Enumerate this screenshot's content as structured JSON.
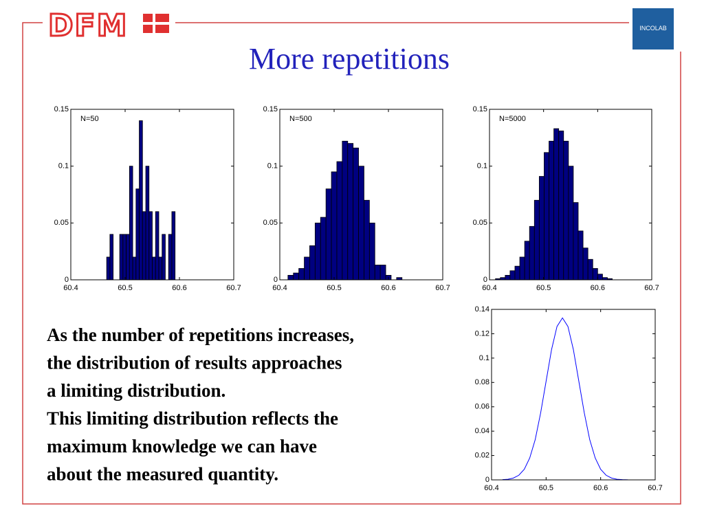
{
  "logo": "DFM",
  "badge": "INCOLAB",
  "title": "More repetitions",
  "body": [
    "As the number of repetitions increases,",
    "the distribution of results approaches",
    "a limiting distribution.",
    "This limiting distribution reflects the",
    "maximum knowledge we can have",
    "about the measured quantity."
  ],
  "chart_data": [
    {
      "type": "histogram",
      "annotation": "N=50",
      "color": "#000080",
      "bins": [
        60.466,
        60.472,
        60.478,
        60.484,
        60.49,
        60.496,
        60.502,
        60.508,
        60.514,
        60.52,
        60.526,
        60.532,
        60.538,
        60.544,
        60.55,
        60.556,
        60.562,
        60.568,
        60.574,
        60.58,
        60.586,
        60.592
      ],
      "values": [
        0.02,
        0.04,
        0,
        0,
        0.04,
        0.04,
        0.04,
        0.1,
        0.02,
        0.08,
        0.14,
        0.06,
        0.1,
        0.06,
        0.02,
        0.06,
        0.02,
        0.04,
        0,
        0.04,
        0.06
      ],
      "xlim": [
        60.4,
        60.7
      ],
      "xticks": [
        60.4,
        60.5,
        60.6,
        60.7
      ],
      "ylim": [
        0,
        0.15
      ],
      "yticks": [
        0,
        0.05,
        0.1,
        0.15
      ]
    },
    {
      "type": "histogram",
      "annotation": "N=500",
      "color": "#000080",
      "bins": [
        60.415,
        60.425,
        60.435,
        60.445,
        60.455,
        60.465,
        60.475,
        60.485,
        60.495,
        60.505,
        60.515,
        60.525,
        60.535,
        60.545,
        60.555,
        60.565,
        60.575,
        60.585,
        60.595,
        60.605,
        60.615,
        60.625
      ],
      "values": [
        0.004,
        0.006,
        0.01,
        0.02,
        0.03,
        0.05,
        0.055,
        0.08,
        0.095,
        0.104,
        0.122,
        0.12,
        0.116,
        0.1,
        0.07,
        0.05,
        0.013,
        0.013,
        0.004,
        0,
        0.002
      ],
      "xlim": [
        60.4,
        60.7
      ],
      "xticks": [
        60.4,
        60.5,
        60.6,
        60.7
      ],
      "ylim": [
        0,
        0.15
      ],
      "yticks": [
        0,
        0.05,
        0.1,
        0.15
      ]
    },
    {
      "type": "histogram",
      "annotation": "N=5000",
      "color": "#000080",
      "bins": [
        60.411,
        60.42,
        60.429,
        60.438,
        60.447,
        60.456,
        60.465,
        60.474,
        60.483,
        60.492,
        60.501,
        60.51,
        60.519,
        60.528,
        60.537,
        60.546,
        60.555,
        60.564,
        60.573,
        60.582,
        60.591,
        60.6,
        60.609,
        60.618,
        60.627
      ],
      "values": [
        0.001,
        0.002,
        0.004,
        0.008,
        0.012,
        0.02,
        0.034,
        0.047,
        0.07,
        0.091,
        0.112,
        0.122,
        0.133,
        0.131,
        0.122,
        0.1,
        0.068,
        0.043,
        0.028,
        0.018,
        0.01,
        0.005,
        0.002,
        0.001
      ],
      "xlim": [
        60.4,
        60.7
      ],
      "xticks": [
        60.4,
        60.5,
        60.6,
        60.7
      ],
      "ylim": [
        0,
        0.15
      ],
      "yticks": [
        0,
        0.05,
        0.1,
        0.15
      ]
    },
    {
      "type": "line",
      "color": "#0000ff",
      "x": [
        60.42,
        60.43,
        60.44,
        60.45,
        60.46,
        60.47,
        60.48,
        60.49,
        60.5,
        60.51,
        60.52,
        60.53,
        60.54,
        60.55,
        60.56,
        60.57,
        60.58,
        60.59,
        60.6,
        60.61,
        60.62,
        60.63,
        60.64,
        60.65,
        60.66
      ],
      "values": [
        0.0002,
        0.0005,
        0.0015,
        0.0038,
        0.0087,
        0.018,
        0.033,
        0.055,
        0.081,
        0.107,
        0.126,
        0.133,
        0.126,
        0.107,
        0.081,
        0.055,
        0.033,
        0.018,
        0.0087,
        0.0038,
        0.0015,
        0.0005,
        0.0002,
        5e-05,
        1e-05
      ],
      "xlim": [
        60.4,
        60.7
      ],
      "xticks": [
        60.4,
        60.5,
        60.6,
        60.7
      ],
      "ylim": [
        0,
        0.14
      ],
      "yticks": [
        0,
        0.02,
        0.04,
        0.06,
        0.08,
        0.1,
        0.12,
        0.14
      ]
    }
  ]
}
